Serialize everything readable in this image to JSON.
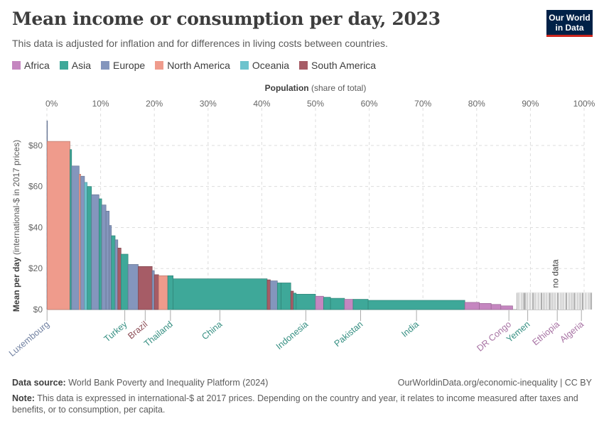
{
  "header": {
    "title": "Mean income or consumption per day, 2023",
    "subtitle": "This data is adjusted for inflation and for differences in living costs between countries.",
    "logo_line1": "Our World",
    "logo_line2": "in Data"
  },
  "legend": [
    {
      "label": "Africa",
      "color": "#c586c0"
    },
    {
      "label": "Asia",
      "color": "#3ea899"
    },
    {
      "label": "Europe",
      "color": "#8496bd"
    },
    {
      "label": "North America",
      "color": "#ef9b8c"
    },
    {
      "label": "Oceania",
      "color": "#6dc3cd"
    },
    {
      "label": "South America",
      "color": "#a65c66"
    }
  ],
  "chart_data": {
    "type": "bar",
    "xlabel_bold": "Population",
    "xlabel_rest": " (share of total)",
    "ylabel_bold": "Mean per day",
    "ylabel_rest": " (international-$ in 2017 prices)",
    "xlim": [
      0,
      100
    ],
    "ylim": [
      0,
      90
    ],
    "x_ticks": [
      "0%",
      "10%",
      "20%",
      "30%",
      "40%",
      "50%",
      "60%",
      "70%",
      "80%",
      "90%",
      "100%"
    ],
    "y_ticks": [
      "$0",
      "$20",
      "$40",
      "$60",
      "$80"
    ],
    "no_data_label": "no data",
    "bars": [
      {
        "start": 0,
        "width": 0.05,
        "value": 92,
        "region": "Europe"
      },
      {
        "start": 0.05,
        "width": 4.25,
        "value": 82,
        "region": "North America"
      },
      {
        "start": 4.3,
        "width": 0.3,
        "value": 78,
        "region": "Asia"
      },
      {
        "start": 4.6,
        "width": 1.4,
        "value": 70,
        "region": "Europe"
      },
      {
        "start": 6.0,
        "width": 0.3,
        "value": 66,
        "region": "North America"
      },
      {
        "start": 6.3,
        "width": 0.7,
        "value": 65,
        "region": "Europe"
      },
      {
        "start": 7.0,
        "width": 0.5,
        "value": 62,
        "region": "Oceania"
      },
      {
        "start": 7.5,
        "width": 0.8,
        "value": 60,
        "region": "Asia"
      },
      {
        "start": 8.3,
        "width": 1.4,
        "value": 56,
        "region": "Europe"
      },
      {
        "start": 9.7,
        "width": 0.5,
        "value": 54,
        "region": "Asia"
      },
      {
        "start": 10.2,
        "width": 0.8,
        "value": 51,
        "region": "Europe"
      },
      {
        "start": 11.0,
        "width": 0.6,
        "value": 48,
        "region": "Europe"
      },
      {
        "start": 11.6,
        "width": 0.4,
        "value": 41,
        "region": "Europe"
      },
      {
        "start": 12.0,
        "width": 0.7,
        "value": 36,
        "region": "Asia"
      },
      {
        "start": 12.7,
        "width": 0.5,
        "value": 34,
        "region": "Europe"
      },
      {
        "start": 13.2,
        "width": 0.6,
        "value": 30,
        "region": "South America"
      },
      {
        "start": 13.8,
        "width": 1.3,
        "value": 27,
        "region": "Asia"
      },
      {
        "start": 15.1,
        "width": 1.9,
        "value": 22,
        "region": "Europe"
      },
      {
        "start": 17.0,
        "width": 2.6,
        "value": 21,
        "region": "South America"
      },
      {
        "start": 19.6,
        "width": 0.4,
        "value": 19,
        "region": "Europe"
      },
      {
        "start": 20.0,
        "width": 0.8,
        "value": 17,
        "region": "South America"
      },
      {
        "start": 20.8,
        "width": 1.7,
        "value": 16.5,
        "region": "North America"
      },
      {
        "start": 22.5,
        "width": 1.0,
        "value": 16.5,
        "region": "Asia"
      },
      {
        "start": 23.5,
        "width": 17.5,
        "value": 15,
        "region": "Asia"
      },
      {
        "start": 41.0,
        "width": 0.6,
        "value": 14.5,
        "region": "South America"
      },
      {
        "start": 41.6,
        "width": 1.3,
        "value": 14,
        "region": "Europe"
      },
      {
        "start": 42.9,
        "width": 0.7,
        "value": 13,
        "region": "Asia"
      },
      {
        "start": 43.6,
        "width": 1.8,
        "value": 13,
        "region": "Asia"
      },
      {
        "start": 45.4,
        "width": 0.5,
        "value": 9,
        "region": "South America"
      },
      {
        "start": 45.9,
        "width": 0.5,
        "value": 8,
        "region": "Asia"
      },
      {
        "start": 46.4,
        "width": 3.6,
        "value": 7.5,
        "region": "Asia"
      },
      {
        "start": 50.0,
        "width": 1.5,
        "value": 6.5,
        "region": "Africa"
      },
      {
        "start": 51.5,
        "width": 1.3,
        "value": 6,
        "region": "Asia"
      },
      {
        "start": 52.8,
        "width": 2.6,
        "value": 5.5,
        "region": "Asia"
      },
      {
        "start": 55.4,
        "width": 1.6,
        "value": 5,
        "region": "Africa"
      },
      {
        "start": 57.0,
        "width": 2.8,
        "value": 5,
        "region": "Asia"
      },
      {
        "start": 59.8,
        "width": 18.0,
        "value": 4.5,
        "region": "Asia"
      },
      {
        "start": 77.8,
        "width": 2.7,
        "value": 3.5,
        "region": "Africa"
      },
      {
        "start": 80.5,
        "width": 2.2,
        "value": 3,
        "region": "Africa"
      },
      {
        "start": 82.7,
        "width": 1.8,
        "value": 2.5,
        "region": "Africa"
      },
      {
        "start": 84.5,
        "width": 2.2,
        "value": 1.8,
        "region": "Africa"
      }
    ],
    "no_data_range": [
      87.5,
      101.5
    ],
    "no_data_value": 8.5,
    "annotations": [
      {
        "label": "Luxembourg",
        "x": 0.03,
        "region": "Europe"
      },
      {
        "label": "Turkey",
        "x": 14.5,
        "region": "Asia"
      },
      {
        "label": "Brazil",
        "x": 18.3,
        "region": "South America"
      },
      {
        "label": "Thailand",
        "x": 23.0,
        "region": "Asia"
      },
      {
        "label": "China",
        "x": 32.2,
        "region": "Asia"
      },
      {
        "label": "Indonesia",
        "x": 48.2,
        "region": "Asia"
      },
      {
        "label": "Pakistan",
        "x": 58.4,
        "region": "Asia"
      },
      {
        "label": "India",
        "x": 68.8,
        "region": "Asia"
      },
      {
        "label": "DR Congo",
        "x": 86.0,
        "region": "Africa"
      },
      {
        "label": "Yemen",
        "x": 89.5,
        "region": "Asia"
      },
      {
        "label": "Ethiopia",
        "x": 95.0,
        "region": "Africa"
      },
      {
        "label": "Algeria",
        "x": 99.5,
        "region": "Africa"
      }
    ]
  },
  "footer": {
    "source_label": "Data source:",
    "source_text": " World Bank Poverty and Inequality Platform (2024)",
    "url": "OurWorldinData.org/economic-inequality | CC BY",
    "note_label": "Note:",
    "note_text": " This data is expressed in international-$ at 2017 prices. Depending on the country and year, it relates to income measured after taxes and benefits, or to consumption, per capita."
  }
}
